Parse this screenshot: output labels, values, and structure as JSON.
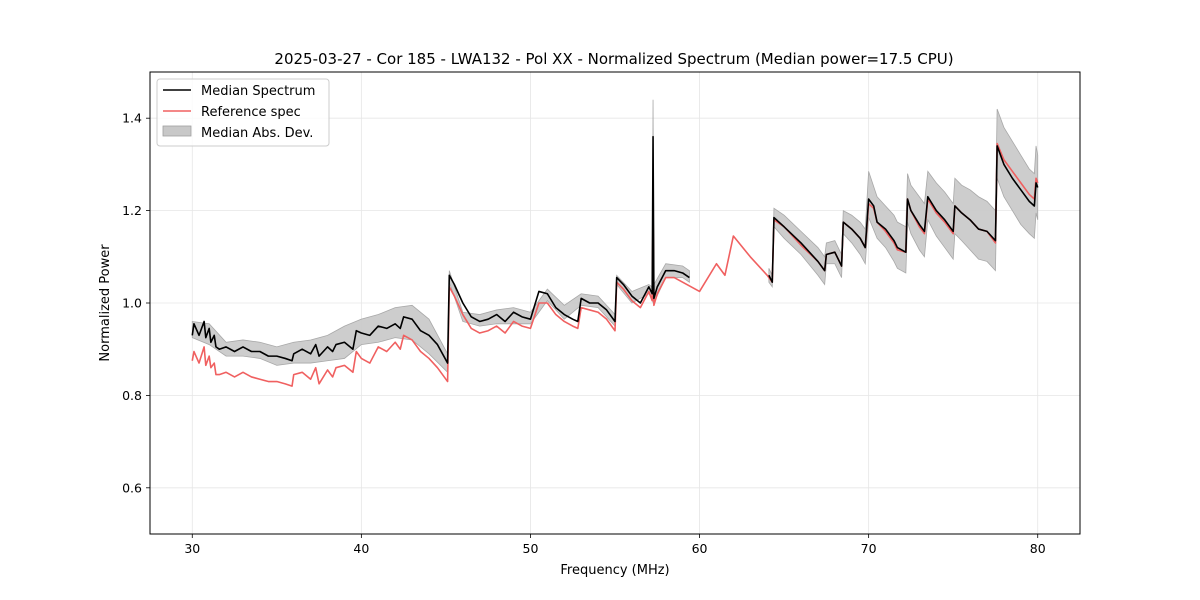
{
  "chart_data": {
    "type": "line",
    "title": "2025-03-27 - Cor 185 - LWA132 - Pol XX - Normalized Spectrum (Median power=17.5 CPU)",
    "xlabel": "Frequency (MHz)",
    "ylabel": "Normalized Power",
    "xlim": [
      27.5,
      82.5
    ],
    "ylim": [
      0.5,
      1.5
    ],
    "xticks": [
      30,
      40,
      50,
      60,
      70,
      80
    ],
    "xtick_labels": [
      "30",
      "40",
      "50",
      "60",
      "70",
      "80"
    ],
    "yticks": [
      0.6,
      0.8,
      1.0,
      1.2,
      1.4
    ],
    "ytick_labels": [
      "0.6",
      "0.8",
      "1.0",
      "1.2",
      "1.4"
    ],
    "grid": true,
    "legend_position": "top-left",
    "legend": [
      {
        "label": "Median Spectrum",
        "kind": "line",
        "color": "#000000"
      },
      {
        "label": "Reference spec",
        "kind": "line",
        "color": "#f06060"
      },
      {
        "label": "Median Abs. Dev.",
        "kind": "band",
        "color": "#c8c8c8"
      }
    ],
    "series": [
      {
        "name": "Median Spectrum",
        "color": "#000000",
        "segments": [
          {
            "x": [
              30.0,
              30.1,
              30.4,
              30.7,
              30.8,
              31.0,
              31.1,
              31.3,
              31.4,
              31.6,
              32.0,
              32.5,
              33.0,
              33.5,
              34.0,
              34.5,
              35.0,
              35.5,
              35.9,
              36.0,
              36.5,
              37.0,
              37.3,
              37.5,
              38.0,
              38.3,
              38.5,
              39.0,
              39.5,
              39.7,
              40.0,
              40.5,
              41.0,
              41.5,
              42.0,
              42.3,
              42.5,
              43.0,
              43.5,
              44.0,
              44.5,
              45.1,
              45.2,
              45.5,
              46.0,
              46.5,
              47.0,
              47.5,
              48.0,
              48.5,
              49.0,
              49.5,
              50.0,
              50.5,
              51.0,
              51.5,
              52.0,
              52.5,
              52.8,
              53.0,
              53.5,
              54.0,
              54.5,
              55.0,
              55.1,
              55.5,
              56.0,
              56.5,
              57.0,
              57.2,
              57.25,
              57.3,
              57.5,
              58.0,
              58.5,
              59.0,
              59.4
            ],
            "y": [
              0.93,
              0.955,
              0.93,
              0.96,
              0.925,
              0.945,
              0.915,
              0.93,
              0.905,
              0.9,
              0.905,
              0.895,
              0.905,
              0.895,
              0.895,
              0.885,
              0.885,
              0.88,
              0.875,
              0.89,
              0.9,
              0.89,
              0.91,
              0.885,
              0.905,
              0.895,
              0.91,
              0.915,
              0.9,
              0.94,
              0.935,
              0.93,
              0.95,
              0.945,
              0.955,
              0.945,
              0.97,
              0.965,
              0.94,
              0.93,
              0.91,
              0.87,
              1.06,
              1.04,
              1.0,
              0.97,
              0.96,
              0.965,
              0.975,
              0.96,
              0.98,
              0.97,
              0.965,
              1.025,
              1.02,
              0.99,
              0.975,
              0.965,
              0.96,
              1.01,
              1.0,
              1.0,
              0.985,
              0.96,
              1.055,
              1.04,
              1.015,
              1.0,
              1.035,
              1.02,
              1.36,
              1.01,
              1.035,
              1.07,
              1.07,
              1.065,
              1.055
            ]
          },
          {
            "x": [
              64.1,
              64.3,
              64.4,
              65.0,
              66.0,
              67.0,
              67.4,
              67.5,
              68.0,
              68.4,
              68.5,
              69.0,
              69.5,
              69.8,
              70.0,
              70.3,
              70.5,
              71.0,
              71.5,
              71.7,
              72.2,
              72.3,
              72.5,
              73.0,
              73.3,
              73.5,
              74.0,
              74.5,
              75.0,
              75.1,
              75.5,
              76.0,
              76.5,
              77.0,
              77.5,
              77.6,
              78.0,
              78.5,
              79.0,
              79.5,
              79.8,
              79.9,
              80.0
            ],
            "y": [
              1.06,
              1.045,
              1.185,
              1.165,
              1.13,
              1.09,
              1.07,
              1.105,
              1.11,
              1.08,
              1.175,
              1.16,
              1.14,
              1.12,
              1.225,
              1.21,
              1.175,
              1.16,
              1.135,
              1.12,
              1.11,
              1.225,
              1.2,
              1.17,
              1.155,
              1.23,
              1.2,
              1.18,
              1.155,
              1.21,
              1.195,
              1.18,
              1.16,
              1.155,
              1.135,
              1.34,
              1.3,
              1.27,
              1.245,
              1.22,
              1.21,
              1.26,
              1.25
            ]
          }
        ]
      },
      {
        "name": "Reference spec",
        "color": "#f06060",
        "segments": [
          {
            "x": [
              30.0,
              30.1,
              30.4,
              30.7,
              30.8,
              31.0,
              31.1,
              31.3,
              31.4,
              31.6,
              32.0,
              32.5,
              33.0,
              33.5,
              34.0,
              34.5,
              35.0,
              35.5,
              35.9,
              36.0,
              36.5,
              37.0,
              37.3,
              37.5,
              38.0,
              38.3,
              38.5,
              39.0,
              39.5,
              39.7,
              40.0,
              40.5,
              41.0,
              41.5,
              42.0,
              42.3,
              42.5,
              43.0,
              43.5,
              44.0,
              44.5,
              45.1,
              45.2,
              45.5,
              46.0,
              46.5,
              47.0,
              47.5,
              48.0,
              48.5,
              49.0,
              49.5,
              50.0,
              50.5,
              51.0,
              51.5,
              52.0,
              52.5,
              52.8,
              53.0,
              53.5,
              54.0,
              54.5,
              55.0,
              55.1,
              55.5,
              56.0,
              56.5,
              57.0,
              57.2,
              57.25,
              57.3,
              57.5,
              58.0,
              58.5,
              59.0,
              59.5,
              60.0,
              61.0,
              61.5,
              62.0,
              63.0,
              64.0,
              64.3,
              64.4,
              65.0,
              66.0,
              67.0,
              67.4,
              67.5,
              68.0,
              68.4,
              68.5,
              69.0,
              69.5,
              69.8,
              70.0,
              70.3,
              70.5,
              71.0,
              71.5,
              71.7,
              72.2,
              72.3,
              72.5,
              73.0,
              73.3,
              73.5,
              74.0,
              74.5,
              75.0,
              75.1,
              75.5,
              76.0,
              76.5,
              77.0,
              77.5,
              77.6,
              78.0,
              78.5,
              79.0,
              79.5,
              79.8,
              79.9,
              80.0
            ],
            "y": [
              0.875,
              0.895,
              0.87,
              0.905,
              0.865,
              0.885,
              0.86,
              0.87,
              0.845,
              0.845,
              0.85,
              0.84,
              0.85,
              0.84,
              0.835,
              0.83,
              0.83,
              0.825,
              0.82,
              0.845,
              0.85,
              0.835,
              0.86,
              0.825,
              0.855,
              0.84,
              0.86,
              0.865,
              0.85,
              0.895,
              0.88,
              0.87,
              0.905,
              0.895,
              0.915,
              0.9,
              0.93,
              0.92,
              0.895,
              0.88,
              0.86,
              0.83,
              1.035,
              1.015,
              0.975,
              0.945,
              0.935,
              0.94,
              0.95,
              0.935,
              0.96,
              0.95,
              0.945,
              1.0,
              1.0,
              0.975,
              0.96,
              0.95,
              0.945,
              0.99,
              0.985,
              0.98,
              0.965,
              0.94,
              1.045,
              1.03,
              1.005,
              0.99,
              1.025,
              1.005,
              1.205,
              0.995,
              1.02,
              1.055,
              1.055,
              1.045,
              1.035,
              1.025,
              1.085,
              1.06,
              1.145,
              1.1,
              1.06,
              1.045,
              1.18,
              1.165,
              1.125,
              1.09,
              1.07,
              1.105,
              1.11,
              1.08,
              1.175,
              1.16,
              1.14,
              1.12,
              1.215,
              1.205,
              1.175,
              1.155,
              1.13,
              1.115,
              1.11,
              1.225,
              1.2,
              1.165,
              1.15,
              1.225,
              1.195,
              1.175,
              1.15,
              1.21,
              1.195,
              1.18,
              1.16,
              1.155,
              1.13,
              1.345,
              1.31,
              1.285,
              1.26,
              1.235,
              1.225,
              1.27,
              1.26
            ]
          }
        ]
      },
      {
        "name": "Median Abs. Dev.",
        "color": "#c8c8c8",
        "segments": [
          {
            "x": [
              30.0,
              31.0,
              32.0,
              33.0,
              34.0,
              35.0,
              36.0,
              37.0,
              38.0,
              39.0,
              40.0,
              41.0,
              42.0,
              43.0,
              44.0,
              45.1,
              45.2,
              46.0,
              47.0,
              48.0,
              49.0,
              50.0,
              51.0,
              52.0,
              53.0,
              54.0,
              55.0,
              55.1,
              56.0,
              57.0,
              57.2,
              57.25,
              57.3,
              58.0,
              59.0,
              59.4
            ],
            "lower": [
              0.925,
              0.91,
              0.885,
              0.885,
              0.88,
              0.865,
              0.87,
              0.87,
              0.875,
              0.88,
              0.91,
              0.915,
              0.925,
              0.92,
              0.89,
              0.85,
              1.045,
              0.96,
              0.95,
              0.955,
              0.955,
              0.955,
              1.005,
              0.965,
              0.995,
              0.99,
              0.95,
              1.04,
              1.0,
              1.02,
              1.01,
              1.0,
              1.0,
              1.055,
              1.055,
              1.045
            ],
            "upper": [
              0.96,
              0.955,
              0.915,
              0.92,
              0.915,
              0.905,
              0.915,
              0.92,
              0.93,
              0.95,
              0.965,
              0.975,
              0.99,
              0.995,
              0.965,
              0.89,
              1.07,
              0.98,
              0.975,
              0.985,
              0.99,
              0.98,
              1.03,
              0.995,
              1.02,
              1.015,
              0.975,
              1.06,
              1.025,
              1.04,
              1.035,
              1.44,
              1.04,
              1.085,
              1.08,
              1.07
            ]
          },
          {
            "x": [
              64.1,
              64.3,
              64.4,
              65.0,
              66.0,
              67.0,
              67.4,
              67.5,
              68.0,
              68.4,
              68.5,
              69.0,
              69.5,
              69.8,
              70.0,
              70.5,
              71.0,
              71.5,
              71.7,
              72.2,
              72.3,
              72.5,
              73.0,
              73.3,
              73.5,
              74.0,
              74.5,
              75.0,
              75.1,
              75.5,
              76.0,
              76.5,
              77.0,
              77.5,
              77.6,
              78.0,
              78.5,
              79.0,
              79.5,
              79.8,
              79.9,
              80.0
            ],
            "lower": [
              1.045,
              1.035,
              1.165,
              1.14,
              1.105,
              1.06,
              1.04,
              1.085,
              1.085,
              1.055,
              1.15,
              1.13,
              1.105,
              1.085,
              1.185,
              1.14,
              1.12,
              1.09,
              1.075,
              1.065,
              1.175,
              1.15,
              1.115,
              1.1,
              1.18,
              1.145,
              1.12,
              1.095,
              1.15,
              1.135,
              1.115,
              1.095,
              1.09,
              1.07,
              1.27,
              1.23,
              1.2,
              1.17,
              1.15,
              1.14,
              1.195,
              1.18
            ],
            "upper": [
              1.075,
              1.06,
              1.205,
              1.19,
              1.155,
              1.12,
              1.1,
              1.13,
              1.135,
              1.105,
              1.2,
              1.19,
              1.175,
              1.16,
              1.285,
              1.23,
              1.21,
              1.19,
              1.175,
              1.165,
              1.28,
              1.255,
              1.23,
              1.215,
              1.285,
              1.26,
              1.24,
              1.215,
              1.27,
              1.255,
              1.245,
              1.23,
              1.22,
              1.2,
              1.42,
              1.38,
              1.35,
              1.32,
              1.29,
              1.28,
              1.34,
              1.32
            ]
          }
        ]
      }
    ]
  }
}
